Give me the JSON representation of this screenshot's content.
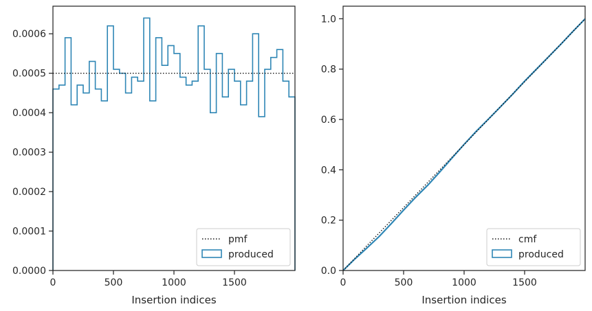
{
  "colors": {
    "hist": "#2e86b5",
    "reference": "#111111",
    "axis": "#262626",
    "legend_border": "#cccccc"
  },
  "chart_data": [
    {
      "type": "histogram-step",
      "xlabel": "Insertion indices",
      "ylabel": "",
      "xlim": [
        0,
        2000
      ],
      "ylim": [
        0,
        0.00067
      ],
      "xticks": [
        0,
        500,
        1000,
        1500
      ],
      "xtick_labels": [
        "0",
        "500",
        "1000",
        "1500"
      ],
      "yticks": [
        0,
        0.0001,
        0.0002,
        0.0003,
        0.0004,
        0.0005,
        0.0006
      ],
      "ytick_labels": [
        "0.0000",
        "0.0001",
        "0.0002",
        "0.0003",
        "0.0004",
        "0.0005",
        "0.0006"
      ],
      "bin_width": 50,
      "reference": {
        "name": "pmf",
        "value": 0.0005
      },
      "series": [
        {
          "name": "produced",
          "values": [
            0.00046,
            0.00047,
            0.00059,
            0.00042,
            0.00047,
            0.00045,
            0.00053,
            0.00046,
            0.00043,
            0.00062,
            0.00051,
            0.0005,
            0.00045,
            0.00049,
            0.00048,
            0.00064,
            0.00043,
            0.00059,
            0.00052,
            0.00057,
            0.00055,
            0.00049,
            0.00047,
            0.00048,
            0.00062,
            0.00051,
            0.0004,
            0.00055,
            0.00044,
            0.00051,
            0.00048,
            0.00042,
            0.00048,
            0.0006,
            0.00039,
            0.00051,
            0.00054,
            0.00056,
            0.00048,
            0.00044
          ]
        }
      ],
      "legend": {
        "placement": "lower-right",
        "entries": [
          "pmf",
          "produced"
        ]
      }
    },
    {
      "type": "line",
      "xlabel": "Insertion indices",
      "ylabel": "",
      "xlim": [
        0,
        2000
      ],
      "ylim": [
        0,
        1.05
      ],
      "xticks": [
        0,
        500,
        1000,
        1500
      ],
      "xtick_labels": [
        "0",
        "500",
        "1000",
        "1500"
      ],
      "yticks": [
        0,
        0.2,
        0.4,
        0.6,
        0.8,
        1.0
      ],
      "ytick_labels": [
        "0.0",
        "0.2",
        "0.4",
        "0.6",
        "0.8",
        "1.0"
      ],
      "reference": {
        "name": "cmf",
        "points": [
          [
            0,
            0
          ],
          [
            2000,
            1
          ]
        ]
      },
      "series": [
        {
          "name": "produced",
          "x": [
            0,
            100,
            200,
            300,
            400,
            500,
            600,
            700,
            800,
            900,
            1000,
            1100,
            1200,
            1300,
            1400,
            1500,
            1600,
            1700,
            1800,
            1900,
            2000
          ],
          "y": [
            0,
            0.047,
            0.091,
            0.136,
            0.187,
            0.24,
            0.291,
            0.339,
            0.392,
            0.447,
            0.501,
            0.553,
            0.601,
            0.65,
            0.7,
            0.752,
            0.801,
            0.85,
            0.899,
            0.95,
            1.0
          ]
        }
      ],
      "legend": {
        "placement": "lower-right",
        "entries": [
          "cmf",
          "produced"
        ]
      }
    }
  ]
}
